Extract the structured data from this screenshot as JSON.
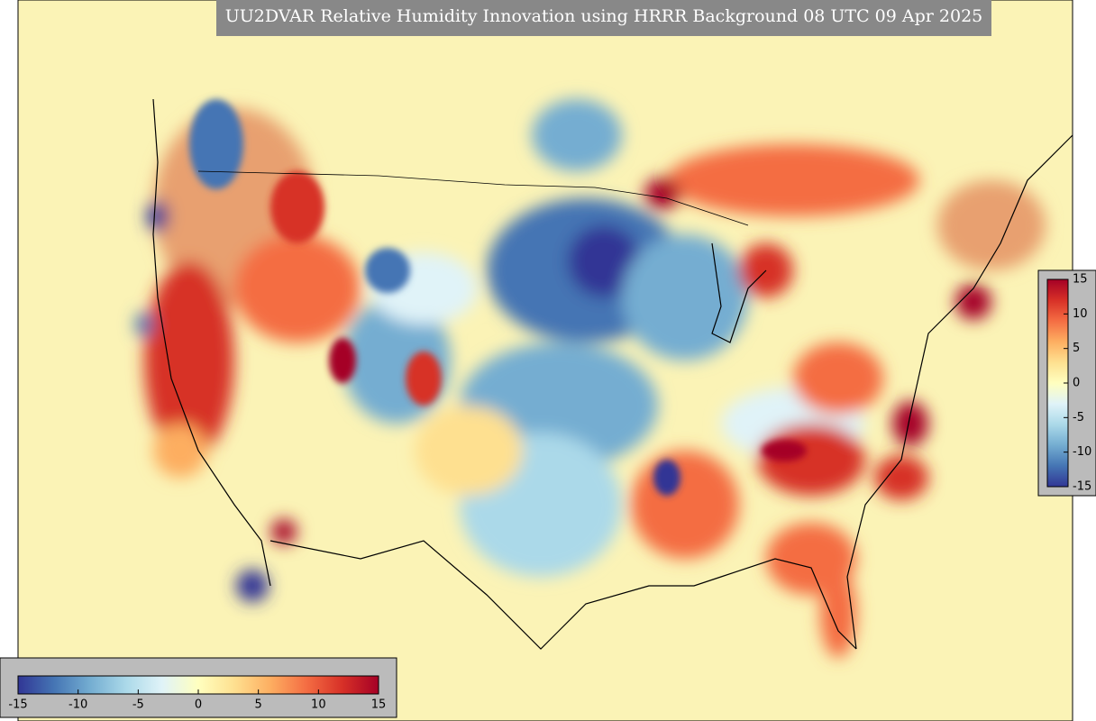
{
  "title": "UU2DVAR Relative Humidity Innovation using HRRR Background 08 UTC 09 Apr 2025",
  "colormap": [
    "#313695",
    "#4575b4",
    "#74add1",
    "#abd9e9",
    "#e0f3f8",
    "#ffffbf",
    "#fee090",
    "#fdae61",
    "#f46d43",
    "#d73027",
    "#a50026"
  ],
  "colorbars": [
    {
      "orientation": "horizontal",
      "range": [
        -15,
        15
      ],
      "ticks": [
        -15,
        -10,
        -5,
        0,
        5,
        10,
        15
      ]
    },
    {
      "orientation": "vertical",
      "range": [
        -15,
        15
      ],
      "ticks": [
        15,
        10,
        5,
        0,
        -5,
        -10,
        -15
      ]
    }
  ]
}
